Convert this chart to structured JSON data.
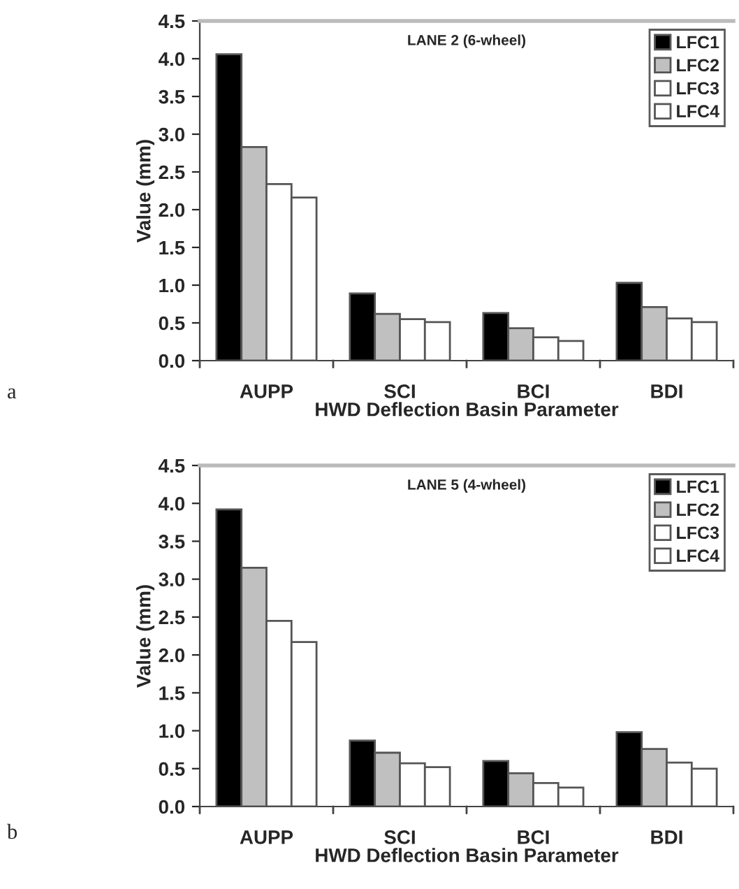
{
  "chart_data": [
    {
      "type": "bar",
      "title": "LANE 2 (6-wheel)",
      "xlabel": "HWD Deflection Basin Parameter",
      "ylabel": "Value (mm)",
      "categories": [
        "AUPP",
        "SCI",
        "BCI",
        "BDI"
      ],
      "series": [
        {
          "name": "LFC1",
          "color": "#000000",
          "values": [
            4.06,
            0.89,
            0.63,
            1.03
          ]
        },
        {
          "name": "LFC2",
          "color": "#c0c0c0",
          "values": [
            2.83,
            0.62,
            0.43,
            0.71
          ]
        },
        {
          "name": "LFC3",
          "color": "#ffffff",
          "values": [
            2.34,
            0.55,
            0.31,
            0.56
          ]
        },
        {
          "name": "LFC4",
          "color": "#ffffff",
          "values": [
            2.16,
            0.51,
            0.26,
            0.51
          ]
        }
      ],
      "ylim": [
        0,
        4.5
      ],
      "yticks": [
        {
          "value": 0,
          "label": "0.0"
        },
        0.5,
        {
          "value": 1,
          "label": "1.0"
        },
        1.5,
        {
          "value": 2,
          "label": "2.0"
        },
        2.5,
        {
          "value": 3,
          "label": "3.0"
        },
        3.5,
        {
          "value": 4,
          "label": "4.0"
        },
        4.5
      ],
      "grid": false,
      "legend": "top right",
      "annotations": [
        "a"
      ]
    },
    {
      "type": "bar",
      "title": "LANE 5 (4-wheel)",
      "xlabel": "HWD Deflection Basin Parameter",
      "ylabel": "Value (mm)",
      "categories": [
        "AUPP",
        "SCI",
        "BCI",
        "BDI"
      ],
      "series": [
        {
          "name": "LFC1",
          "color": "#000000",
          "values": [
            3.92,
            0.87,
            0.6,
            0.98
          ]
        },
        {
          "name": "LFC2",
          "color": "#c0c0c0",
          "values": [
            3.15,
            0.71,
            0.44,
            0.76
          ]
        },
        {
          "name": "LFC3",
          "color": "#ffffff",
          "values": [
            2.45,
            0.57,
            0.31,
            0.58
          ]
        },
        {
          "name": "LFC4",
          "color": "#ffffff",
          "values": [
            2.17,
            0.52,
            0.25,
            0.5
          ]
        }
      ],
      "ylim": [
        0,
        4.5
      ],
      "yticks": [
        {
          "value": 0,
          "label": "0.0"
        },
        0.5,
        {
          "value": 1,
          "label": "1.0"
        },
        1.5,
        {
          "value": 2,
          "label": "2.0"
        },
        2.5,
        {
          "value": 3,
          "label": "3.0"
        },
        3.5,
        {
          "value": 4,
          "label": "4.0"
        },
        4.5
      ],
      "grid": false,
      "legend": "top right",
      "annotations": [
        "b"
      ]
    }
  ]
}
